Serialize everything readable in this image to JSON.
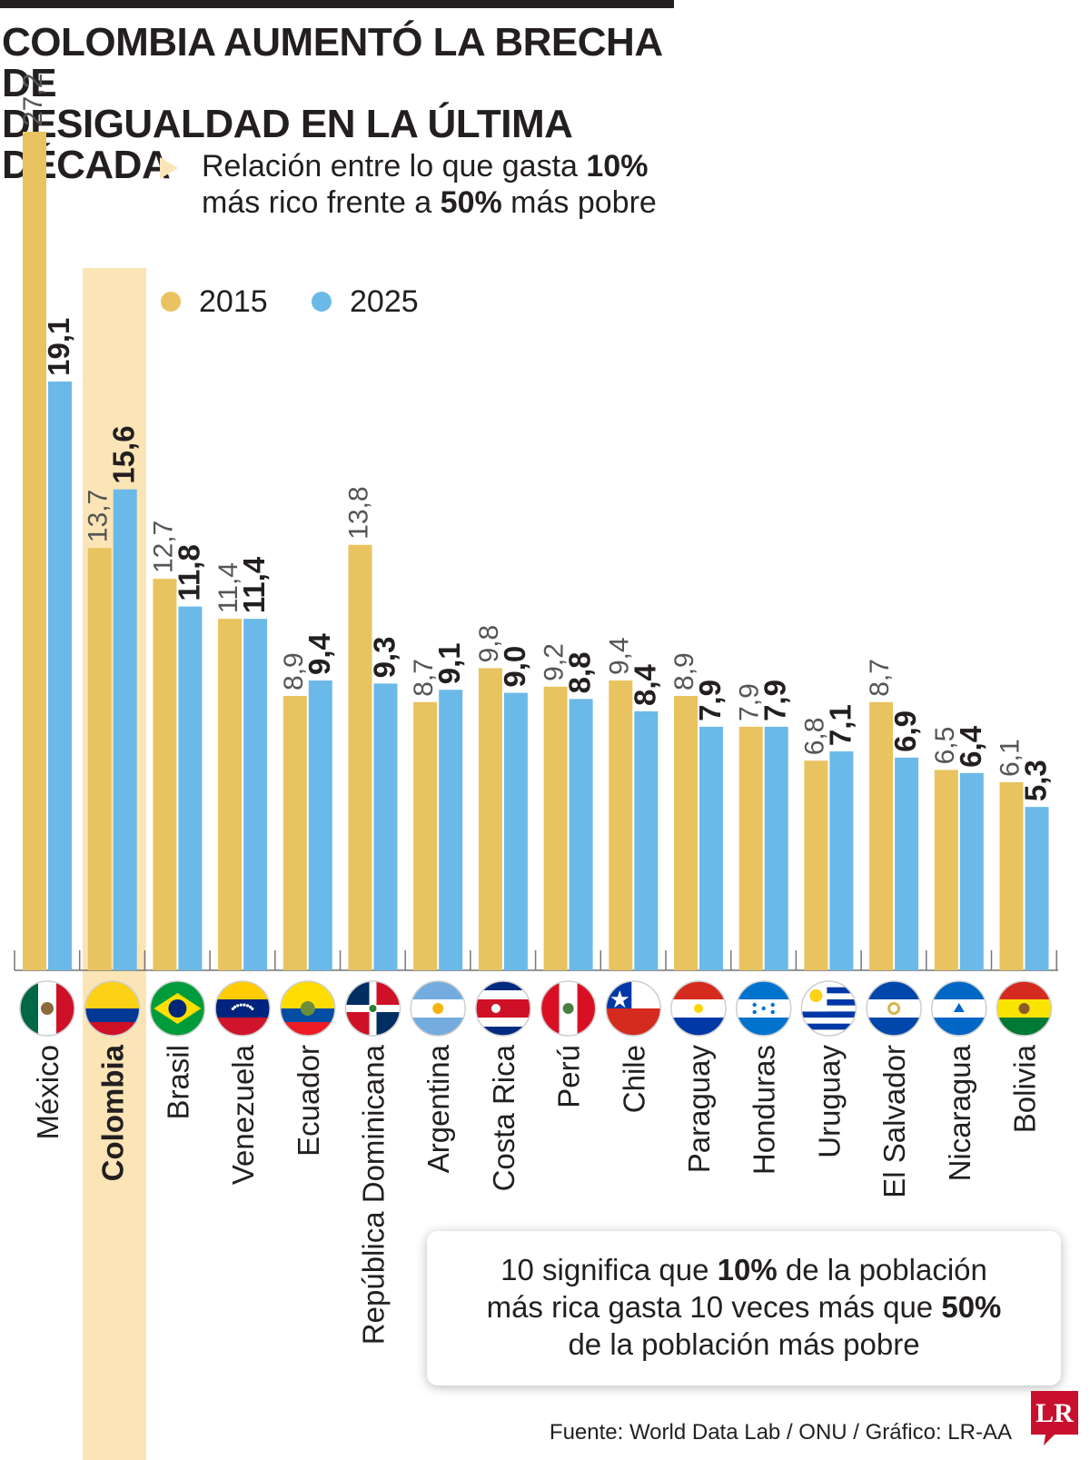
{
  "title": {
    "line1": "COLOMBIA AUMENTÓ LA BRECHA DE",
    "line2": "DESIGUALDAD EN LA ÚLTIMA DÉCADA"
  },
  "subtitle": {
    "line1_pre": "Relación entre lo que gasta ",
    "line1_bold": "10%",
    "line2_pre": "más rico frente a ",
    "line2_bold": "50%",
    "line2_post": " más pobre"
  },
  "colors": {
    "series_2015": "#e8c35f",
    "series_2025": "#6bb9e8",
    "highlight": "#fbe5b6",
    "text": "#231f20"
  },
  "note": {
    "line1_pre": "10 significa que ",
    "line1_bold": "10%",
    "line1_post": " de la población",
    "line2_pre": "más rica gasta 10 veces más que ",
    "line2_bold": "50%",
    "line3": "de la población más pobre"
  },
  "source": "Fuente: World Data Lab / ONU / Gráfico: LR-AA",
  "logo_text": "LR",
  "chart_data": {
    "type": "bar",
    "highlighted_category": "Colombia",
    "categories": [
      "México",
      "Colombia",
      "Brasil",
      "Venezuela",
      "Ecuador",
      "República Dominicana",
      "Argentina",
      "Costa Rica",
      "Perú",
      "Chile",
      "Paraguay",
      "Honduras",
      "Uruguay",
      "El Salvador",
      "Nicaragua",
      "Bolivia"
    ],
    "series": [
      {
        "name": "2015",
        "values": [
          27.2,
          13.7,
          12.7,
          11.4,
          8.9,
          13.8,
          8.7,
          9.8,
          9.2,
          9.4,
          8.9,
          7.9,
          6.8,
          8.7,
          6.5,
          6.1
        ],
        "labels": [
          "27,2",
          "13,7",
          "12,7",
          "11,4",
          "8,9",
          "13,8",
          "8,7",
          "9,8",
          "9,2",
          "9,4",
          "8,9",
          "7,9",
          "6,8",
          "8,7",
          "6,5",
          "6,1"
        ]
      },
      {
        "name": "2025",
        "values": [
          19.1,
          15.6,
          11.8,
          11.4,
          9.4,
          9.3,
          9.1,
          9.0,
          8.8,
          8.4,
          7.9,
          7.9,
          7.1,
          6.9,
          6.4,
          5.3
        ],
        "labels": [
          "19,1",
          "15,6",
          "11,8",
          "11,4",
          "9,4",
          "9,3",
          "9,1",
          "9,0",
          "8,8",
          "8,4",
          "7,9",
          "7,9",
          "7,1",
          "6,9",
          "6,4",
          "5,3"
        ]
      }
    ],
    "flag_icons": [
      "flag-mexico",
      "flag-colombia",
      "flag-brazil",
      "flag-venezuela",
      "flag-ecuador",
      "flag-dominican-republic",
      "flag-argentina",
      "flag-costa-rica",
      "flag-peru",
      "flag-chile",
      "flag-paraguay",
      "flag-honduras",
      "flag-uruguay",
      "flag-el-salvador",
      "flag-nicaragua",
      "flag-bolivia"
    ],
    "ylim": [
      0,
      28
    ],
    "grid": false,
    "legend_position": "top-center",
    "xlabel": "",
    "ylabel": ""
  }
}
